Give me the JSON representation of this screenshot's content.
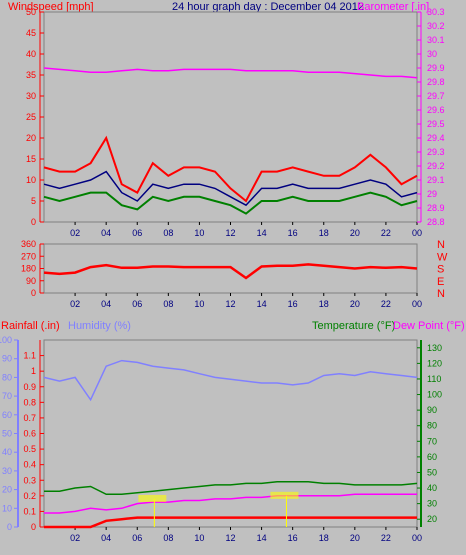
{
  "header": {
    "left_title": "Windspeed [mph]",
    "center_title": "24 hour graph day : December 04 2012",
    "right_title": "Barometer [.in]"
  },
  "lower_header": {
    "rainfall": "Rainfall (.in)",
    "humidity": "Humidity (%)",
    "temperature": "Temperature (°F)",
    "dewpoint": "Dew Point (°F)"
  },
  "colors": {
    "background": "#c0c0c0",
    "windspeed": "#ff0000",
    "wind_avg": "#000080",
    "wind_low": "#008000",
    "barometer": "#ff00ff",
    "direction": "#ff0000",
    "humidity": "#8080ff",
    "temperature": "#008000",
    "dewpoint": "#ff00ff",
    "rain": "#ff0000",
    "center_title": "#000080",
    "marker": "#ffff00"
  },
  "chart_data": [
    {
      "type": "line",
      "id": "wind",
      "x_tick_labels": [
        "02",
        "04",
        "06",
        "08",
        "10",
        "12",
        "14",
        "16",
        "18",
        "20",
        "22",
        "00"
      ],
      "x_unit": "hour",
      "left_axis": {
        "label": "Windspeed [mph]",
        "ylim": [
          0,
          50
        ],
        "ticks": [
          "0",
          "5",
          "10",
          "15",
          "20",
          "25",
          "30",
          "35",
          "40",
          "45",
          "50"
        ]
      },
      "right_axis": {
        "label": "Barometer [.in]",
        "ylim": [
          29.8,
          30.2
        ],
        "ticks": [
          "28.8",
          "28.9",
          "29",
          "29.1",
          "29.2",
          "29.3",
          "29.4",
          "29.5",
          "29.6",
          "29.7",
          "29.8",
          "29.9",
          "30",
          "30.1",
          "30.2",
          "30.3"
        ]
      },
      "series": [
        {
          "x": [
            0,
            1,
            2,
            3,
            4,
            5,
            6,
            7,
            8,
            9,
            10,
            11,
            12,
            13,
            14,
            15,
            16,
            17,
            18,
            19,
            20,
            21,
            22,
            23,
            24
          ],
          "y": [
            13,
            12,
            12,
            14,
            20,
            9,
            7,
            14,
            11,
            13,
            13,
            12,
            8,
            5,
            12,
            12,
            13,
            12,
            11,
            11,
            13,
            16,
            13,
            9,
            11
          ]
        },
        {
          "x": [
            0,
            1,
            2,
            3,
            4,
            5,
            6,
            7,
            8,
            9,
            10,
            11,
            12,
            13,
            14,
            15,
            16,
            17,
            18,
            19,
            20,
            21,
            22,
            23,
            24
          ],
          "y": [
            9,
            8,
            9,
            10,
            12,
            7,
            5,
            9,
            8,
            9,
            9,
            8,
            6,
            4,
            8,
            8,
            9,
            8,
            8,
            8,
            9,
            10,
            9,
            6,
            7
          ]
        },
        {
          "x": [
            0,
            1,
            2,
            3,
            4,
            5,
            6,
            7,
            8,
            9,
            10,
            11,
            12,
            13,
            14,
            15,
            16,
            17,
            18,
            19,
            20,
            21,
            22,
            23,
            24
          ],
          "y": [
            6,
            5,
            6,
            7,
            7,
            4,
            3,
            6,
            5,
            6,
            6,
            5,
            4,
            2,
            5,
            5,
            6,
            5,
            5,
            5,
            6,
            7,
            6,
            4,
            5
          ]
        },
        {
          "x": [
            0,
            1,
            2,
            3,
            4,
            5,
            6,
            7,
            8,
            9,
            10,
            11,
            12,
            13,
            14,
            15,
            16,
            17,
            18,
            19,
            20,
            21,
            22,
            23,
            24
          ],
          "y": [
            29.9,
            29.89,
            29.88,
            29.87,
            29.87,
            29.88,
            29.89,
            29.88,
            29.88,
            29.89,
            29.89,
            29.89,
            29.89,
            29.88,
            29.88,
            29.88,
            29.88,
            29.87,
            29.87,
            29.87,
            29.86,
            29.85,
            29.84,
            29.84,
            29.83
          ]
        }
      ]
    },
    {
      "type": "line",
      "id": "direction",
      "x_tick_labels": [
        "02",
        "04",
        "06",
        "08",
        "10",
        "12",
        "14",
        "16",
        "18",
        "20",
        "22",
        "00"
      ],
      "ylim": [
        0,
        360
      ],
      "ticks": [
        "0",
        "90",
        "180",
        "270",
        "360"
      ],
      "right_labels": [
        "N",
        "W",
        "S",
        "E",
        "N"
      ],
      "series": [
        {
          "x": [
            0,
            1,
            2,
            3,
            4,
            5,
            6,
            7,
            8,
            9,
            10,
            11,
            12,
            13,
            14,
            15,
            16,
            17,
            18,
            19,
            20,
            21,
            22,
            23,
            24
          ],
          "y": [
            150,
            140,
            150,
            190,
            205,
            185,
            185,
            195,
            195,
            190,
            190,
            190,
            190,
            110,
            195,
            200,
            200,
            210,
            200,
            190,
            180,
            190,
            185,
            190,
            180
          ]
        }
      ]
    },
    {
      "type": "line",
      "id": "temp_hum_rain",
      "x_tick_labels": [
        "02",
        "04",
        "06",
        "08",
        "10",
        "12",
        "14",
        "16",
        "18",
        "20",
        "22",
        "00"
      ],
      "rain_axis": {
        "label": "Rainfall (.in)",
        "ylim": [
          0,
          1.2
        ],
        "ticks": [
          "0",
          "0.1",
          "0.2",
          "0.3",
          "0.4",
          "0.5",
          "0.6",
          "0.7",
          "0.8",
          "0.9",
          "1",
          "1.1"
        ]
      },
      "humidity_axis": {
        "label": "Humidity (%)",
        "ylim": [
          0,
          100
        ],
        "ticks": [
          "0",
          "10",
          "20",
          "30",
          "40",
          "50",
          "60",
          "70",
          "80",
          "90",
          "100"
        ]
      },
      "temp_axis": {
        "label": "Temperature (°F)",
        "ylim": [
          15,
          135
        ],
        "ticks": [
          "20",
          "30",
          "40",
          "50",
          "60",
          "70",
          "80",
          "90",
          "100",
          "110",
          "120",
          "130"
        ]
      },
      "series": [
        {
          "x": [
            0,
            1,
            2,
            3,
            4,
            5,
            6,
            7,
            8,
            9,
            10,
            11,
            12,
            13,
            14,
            15,
            16,
            17,
            18,
            19,
            20,
            21,
            22,
            23,
            24
          ],
          "y": [
            80,
            78,
            80,
            68,
            86,
            89,
            88,
            86,
            85,
            84,
            82,
            80,
            79,
            78,
            77,
            77,
            76,
            77,
            81,
            82,
            81,
            83,
            82,
            81,
            80
          ]
        },
        {
          "x": [
            0,
            1,
            2,
            3,
            4,
            5,
            6,
            7,
            8,
            9,
            10,
            11,
            12,
            13,
            14,
            15,
            16,
            17,
            18,
            19,
            20,
            21,
            22,
            23,
            24
          ],
          "y": [
            38,
            38,
            40,
            41,
            36,
            36,
            37,
            38,
            39,
            40,
            41,
            42,
            42,
            43,
            43,
            44,
            44,
            44,
            43,
            43,
            42,
            42,
            42,
            42,
            43
          ]
        },
        {
          "x": [
            0,
            1,
            2,
            3,
            4,
            5,
            6,
            7,
            8,
            9,
            10,
            11,
            12,
            13,
            14,
            15,
            16,
            17,
            18,
            19,
            20,
            21,
            22,
            23,
            24
          ],
          "y": [
            24,
            24,
            25,
            27,
            26,
            27,
            30,
            31,
            31,
            32,
            32,
            33,
            33,
            34,
            34,
            35,
            35,
            35,
            35,
            35,
            36,
            36,
            36,
            36,
            36
          ]
        },
        {
          "x": [
            0,
            1,
            2,
            3,
            4,
            5,
            6,
            7,
            8,
            9,
            10,
            11,
            12,
            13,
            14,
            15,
            16,
            17,
            18,
            19,
            20,
            21,
            22,
            23,
            24
          ],
          "y": [
            0,
            0,
            0,
            0,
            0.04,
            0.05,
            0.06,
            0.06,
            0.06,
            0.06,
            0.06,
            0.06,
            0.06,
            0.06,
            0.06,
            0.06,
            0.06,
            0.06,
            0.06,
            0.06,
            0.06,
            0.06,
            0.06,
            0.06,
            0.06
          ]
        }
      ]
    }
  ]
}
